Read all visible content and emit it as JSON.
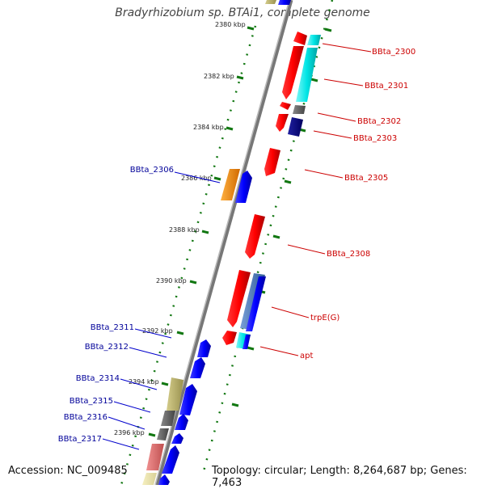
{
  "title": "Bradyrhizobium sp. BTAi1, complete genome",
  "footer": {
    "accession": "Accession: NC_009485",
    "topology": "Topology: circular; Length: 8,264,687 bp; Genes: 7,463"
  },
  "scale_labels": [
    "2380 kbp",
    "2382 kbp",
    "2384 kbp",
    "2386 kbp",
    "2388 kbp",
    "2390 kbp",
    "2392 kbp",
    "2394 kbp",
    "2396 kbp"
  ],
  "genes_right": [
    {
      "id": "right-bbta-2300",
      "label": "BBta_2300",
      "color": "#cc0000"
    },
    {
      "id": "right-bbta-2301",
      "label": "BBta_2301",
      "color": "#cc0000"
    },
    {
      "id": "right-bbta-2302",
      "label": "BBta_2302",
      "color": "#cc0000"
    },
    {
      "id": "right-bbta-2303",
      "label": "BBta_2303",
      "color": "#cc0000"
    },
    {
      "id": "right-bbta-2305",
      "label": "BBta_2305",
      "color": "#cc0000"
    },
    {
      "id": "right-bbta-2308",
      "label": "BBta_2308",
      "color": "#cc0000"
    },
    {
      "id": "right-trpe",
      "label": "trpE(G)",
      "color": "#cc0000"
    },
    {
      "id": "right-apt",
      "label": "apt",
      "color": "#cc0000"
    }
  ],
  "genes_left": [
    {
      "id": "left-bbta-2306",
      "label": "BBta_2306",
      "color": "#000099"
    },
    {
      "id": "left-bbta-2311",
      "label": "BBta_2311",
      "color": "#000099"
    },
    {
      "id": "left-bbta-2312",
      "label": "BBta_2312",
      "color": "#000099"
    },
    {
      "id": "left-bbta-2314",
      "label": "BBta_2314",
      "color": "#000099"
    },
    {
      "id": "left-bbta-2315",
      "label": "BBta_2315",
      "color": "#000099"
    },
    {
      "id": "left-bbta-2316",
      "label": "BBta_2316",
      "color": "#000099"
    },
    {
      "id": "left-bbta-2317",
      "label": "BBta_2317",
      "color": "#000099"
    }
  ],
  "colors": {
    "forward_strand": "#ff0000",
    "reverse_strand": "#0000ff",
    "backbone": "#888888",
    "scale_ticks": "#117711",
    "cyan_gene": "#00e5e5",
    "navy_gene": "#000080",
    "orange_gene": "#ff8c00",
    "steelblue_gene": "#4a78b8",
    "gray_gene": "#666666",
    "khaki_gene": "#b8b06a",
    "pink_gene": "#e07070"
  }
}
